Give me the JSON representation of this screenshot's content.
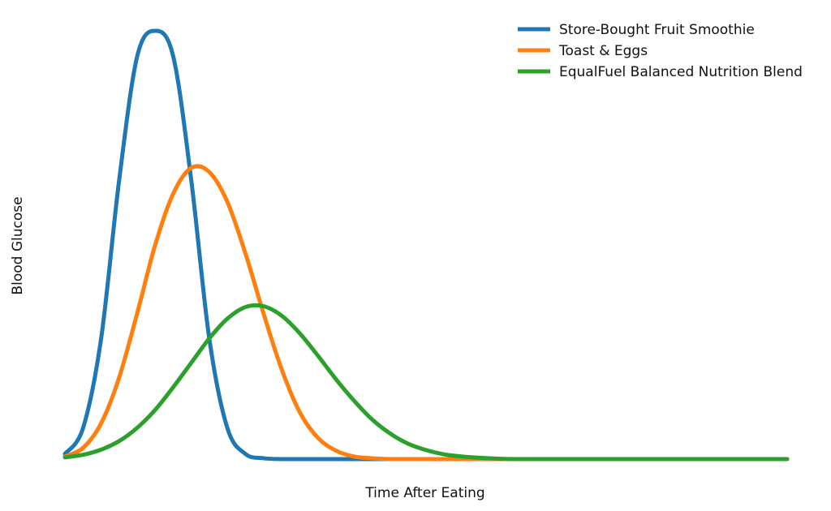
{
  "chart_data": {
    "type": "line",
    "title": "",
    "xlabel": "Time After Eating",
    "ylabel": "Blood Glucose",
    "xlim": [
      0,
      10
    ],
    "ylim": [
      0,
      1
    ],
    "grid": false,
    "axes_visible": false,
    "legend_position": "top-right",
    "x": [
      0.0,
      0.25,
      0.5,
      0.75,
      1.0,
      1.25,
      1.5,
      1.75,
      2.0,
      2.25,
      2.5,
      2.75,
      3.0,
      3.25,
      3.5,
      3.75,
      4.0,
      4.25,
      4.5,
      4.75,
      5.0,
      5.25,
      5.5,
      5.75,
      6.0,
      6.25,
      6.5,
      6.75,
      7.0,
      7.25,
      7.5,
      7.75,
      8.0,
      8.25,
      8.5,
      8.75,
      9.0,
      9.25,
      9.5,
      9.75,
      10.0
    ],
    "series": [
      {
        "name": "Store-Bought Fruit Smoothie",
        "color": "#1f77b4",
        "values": [
          0.012,
          0.072,
          0.28,
          0.65,
          0.94,
          1.0,
          0.94,
          0.65,
          0.28,
          0.072,
          0.012,
          0.002,
          0.0,
          0.0,
          0.0,
          0.0,
          0.0,
          0.0,
          0.0,
          0.0,
          0.0,
          0.0,
          0.0,
          0.0,
          0.0,
          0.0,
          0.0,
          0.0,
          0.0,
          0.0,
          0.0,
          0.0,
          0.0,
          0.0,
          0.0,
          0.0,
          0.0,
          0.0,
          0.0,
          0.0,
          0.0
        ]
      },
      {
        "name": "Toast & Eggs",
        "color": "#ff7f0e",
        "values": [
          0.006,
          0.026,
          0.083,
          0.19,
          0.34,
          0.5,
          0.62,
          0.68,
          0.67,
          0.6,
          0.48,
          0.34,
          0.21,
          0.11,
          0.05,
          0.02,
          0.006,
          0.002,
          0.0,
          0.0,
          0.0,
          0.0,
          0.0,
          0.0,
          0.0,
          0.0,
          0.0,
          0.0,
          0.0,
          0.0,
          0.0,
          0.0,
          0.0,
          0.0,
          0.0,
          0.0,
          0.0,
          0.0,
          0.0,
          0.0,
          0.0
        ]
      },
      {
        "name": "EqualFuel Balanced Nutrition Blend",
        "color": "#2ca02c",
        "values": [
          0.004,
          0.01,
          0.022,
          0.042,
          0.073,
          0.115,
          0.168,
          0.225,
          0.282,
          0.328,
          0.355,
          0.357,
          0.335,
          0.294,
          0.242,
          0.187,
          0.137,
          0.093,
          0.06,
          0.036,
          0.021,
          0.011,
          0.006,
          0.003,
          0.001,
          0.0,
          0.0,
          0.0,
          0.0,
          0.0,
          0.0,
          0.0,
          0.0,
          0.0,
          0.0,
          0.0,
          0.0,
          0.0,
          0.0,
          0.0,
          0.0
        ]
      }
    ]
  }
}
